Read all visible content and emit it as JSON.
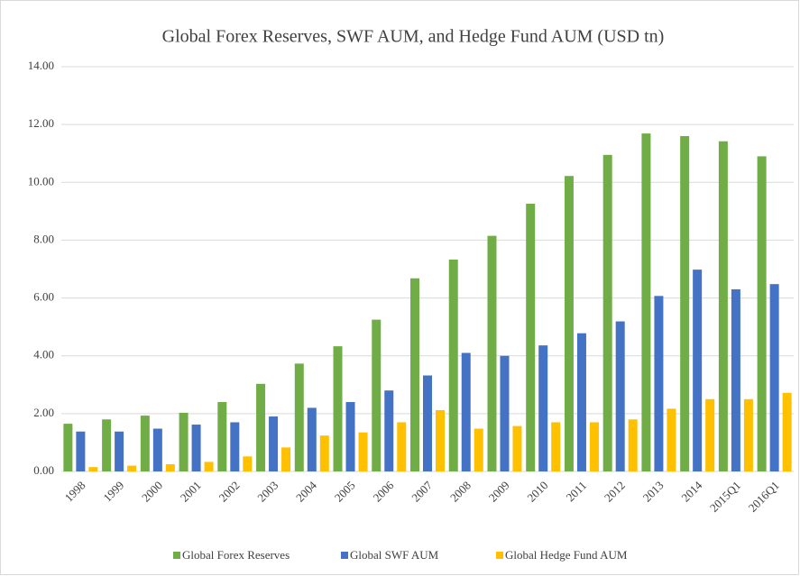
{
  "chart_data": {
    "type": "bar",
    "title": "Global Forex Reserves, SWF AUM, and Hedge Fund AUM (USD tn)",
    "categories": [
      "1998",
      "1999",
      "2000",
      "2001",
      "2002",
      "2003",
      "2004",
      "2005",
      "2006",
      "2007",
      "2008",
      "2009",
      "2010",
      "2011",
      "2012",
      "2013",
      "2014",
      "2015Q1",
      "2016Q1"
    ],
    "series": [
      {
        "name": "Global Forex Reserves",
        "color": "#70ad47",
        "values": [
          1.65,
          1.8,
          1.93,
          2.03,
          2.4,
          3.03,
          3.73,
          4.33,
          5.25,
          6.68,
          7.33,
          8.15,
          9.26,
          10.22,
          10.95,
          11.69,
          11.6,
          11.42,
          10.9
        ]
      },
      {
        "name": "Global SWF AUM",
        "color": "#4472c4",
        "values": [
          1.38,
          1.38,
          1.48,
          1.62,
          1.7,
          1.9,
          2.2,
          2.4,
          2.8,
          3.32,
          4.1,
          4.0,
          4.36,
          4.78,
          5.19,
          6.07,
          6.98,
          6.3,
          6.48
        ]
      },
      {
        "name": "Global Hedge Fund AUM",
        "color": "#ffc000",
        "values": [
          0.15,
          0.2,
          0.25,
          0.33,
          0.52,
          0.83,
          1.24,
          1.35,
          1.7,
          2.12,
          1.48,
          1.57,
          1.7,
          1.7,
          1.8,
          2.17,
          2.5,
          2.5,
          2.72
        ]
      }
    ],
    "ylim": [
      0,
      14
    ],
    "yticks": [
      {
        "value": 0,
        "label": "0.00"
      },
      {
        "value": 2,
        "label": "2.00"
      },
      {
        "value": 4,
        "label": "4.00"
      },
      {
        "value": 6,
        "label": "6.00"
      },
      {
        "value": 8,
        "label": "8.00"
      },
      {
        "value": 10,
        "label": "10.00"
      },
      {
        "value": 12,
        "label": "12.00"
      },
      {
        "value": 14,
        "label": "14.00"
      }
    ],
    "grid": true,
    "legend": "bottom"
  }
}
